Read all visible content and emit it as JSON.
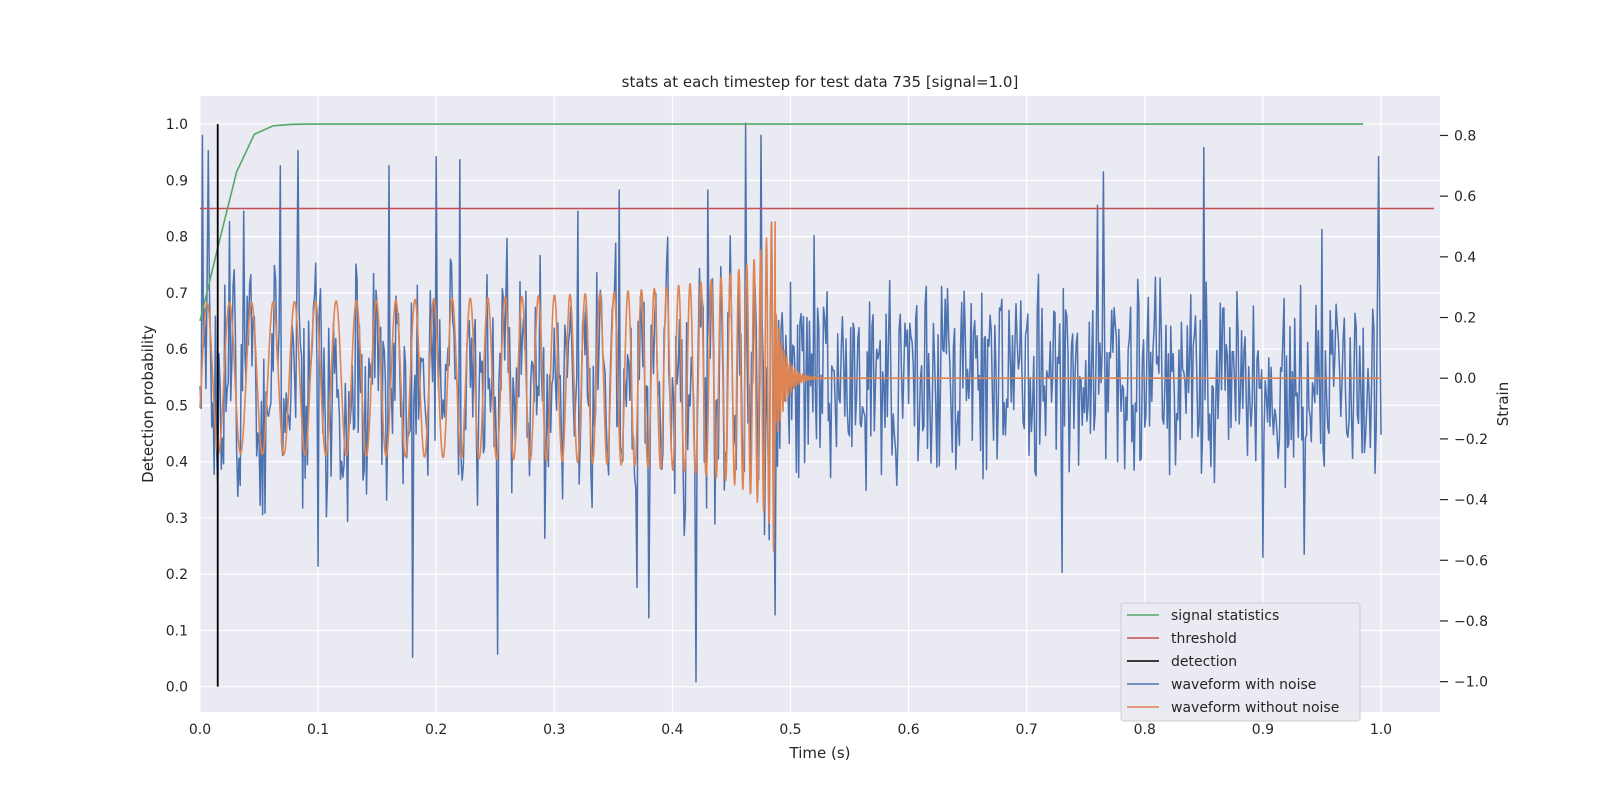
{
  "chart_data": {
    "type": "line",
    "title": "stats at each timestep for test data 735 [signal=1.0]",
    "xlabel": "Time (s)",
    "ylabel": "Detection probability",
    "y2label": "Strain",
    "xlim": [
      0,
      1.05
    ],
    "ylim": [
      -0.045,
      1.05
    ],
    "y2lim": [
      -1.1,
      0.93
    ],
    "x_ticks": [
      0,
      0.1,
      0.2,
      0.3,
      0.4,
      0.5,
      0.6,
      0.7,
      0.8,
      0.9,
      1.0
    ],
    "x_tick_labels": [
      "0.0",
      "0.1",
      "0.2",
      "0.3",
      "0.4",
      "0.5",
      "0.6",
      "0.7",
      "0.8",
      "0.9",
      "1.0"
    ],
    "y_ticks": [
      0,
      0.1,
      0.2,
      0.3,
      0.4,
      0.5,
      0.6,
      0.7,
      0.8,
      0.9,
      1.0
    ],
    "y_tick_labels": [
      "0.0",
      "0.1",
      "0.2",
      "0.3",
      "0.4",
      "0.5",
      "0.6",
      "0.7",
      "0.8",
      "0.9",
      "1.0"
    ],
    "y2_ticks": [
      -1.0,
      -0.8,
      -0.6,
      -0.4,
      -0.2,
      0.0,
      0.2,
      0.4,
      0.6,
      0.8
    ],
    "y2_tick_labels": [
      "−1.0",
      "−0.8",
      "−0.6",
      "−0.4",
      "−0.2",
      "0.0",
      "0.2",
      "0.4",
      "0.6",
      "0.8"
    ],
    "grid": true,
    "legend_position": "lower-right",
    "colors": {
      "background": "#eaeaf2",
      "grid": "#ffffff",
      "signal": "#55a868",
      "threshold": "#c44e52",
      "detection": "#000000",
      "noisy": "#4c72b0",
      "clean": "#dd8452"
    },
    "series": [
      {
        "name": "signal statistics",
        "axis": "left",
        "x": [
          0.0,
          0.015,
          0.031,
          0.046,
          0.062,
          0.077,
          0.093,
          0.108,
          0.2,
          0.4,
          0.6,
          0.8,
          0.985
        ],
        "y": [
          0.65,
          0.78,
          0.915,
          0.982,
          0.997,
          0.9995,
          1.0,
          1.0,
          1.0,
          1.0,
          1.0,
          1.0,
          1.0
        ]
      },
      {
        "name": "threshold",
        "axis": "left",
        "x": [
          0.0,
          1.045
        ],
        "y": [
          0.85,
          0.85
        ]
      },
      {
        "name": "detection",
        "axis": "left",
        "x": [
          0.015,
          0.015
        ],
        "y": [
          0.0,
          1.0
        ]
      },
      {
        "name": "waveform with noise",
        "axis": "right",
        "noise_amplitude": 0.28,
        "peaks": [
          [
            0.002,
            0.8
          ],
          [
            0.007,
            0.75
          ],
          [
            0.018,
            -0.3
          ],
          [
            0.037,
            0.55
          ],
          [
            0.053,
            -0.45
          ],
          [
            0.068,
            0.7
          ],
          [
            0.083,
            0.75
          ],
          [
            0.1,
            -0.62
          ],
          [
            0.16,
            0.7
          ],
          [
            0.18,
            -0.92
          ],
          [
            0.2,
            0.73
          ],
          [
            0.22,
            0.72
          ],
          [
            0.252,
            -0.91
          ],
          [
            0.32,
            0.55
          ],
          [
            0.355,
            0.62
          ],
          [
            0.37,
            -0.69
          ],
          [
            0.38,
            -0.79
          ],
          [
            0.42,
            -1.0
          ],
          [
            0.43,
            0.62
          ],
          [
            0.462,
            0.84
          ],
          [
            0.475,
            0.8
          ],
          [
            0.487,
            -0.78
          ],
          [
            0.52,
            0.47
          ],
          [
            0.73,
            -0.64
          ],
          [
            0.76,
            0.57
          ],
          [
            0.765,
            0.68
          ],
          [
            0.85,
            0.76
          ],
          [
            0.9,
            -0.59
          ],
          [
            0.935,
            -0.58
          ],
          [
            0.95,
            0.49
          ],
          [
            0.998,
            0.73
          ]
        ]
      },
      {
        "name": "waveform without noise",
        "axis": "right",
        "amplitude_start": 0.2,
        "amplitude_peak": 0.62,
        "merger_time": 0.487,
        "extent": [
          0.0,
          1.0
        ]
      }
    ]
  }
}
